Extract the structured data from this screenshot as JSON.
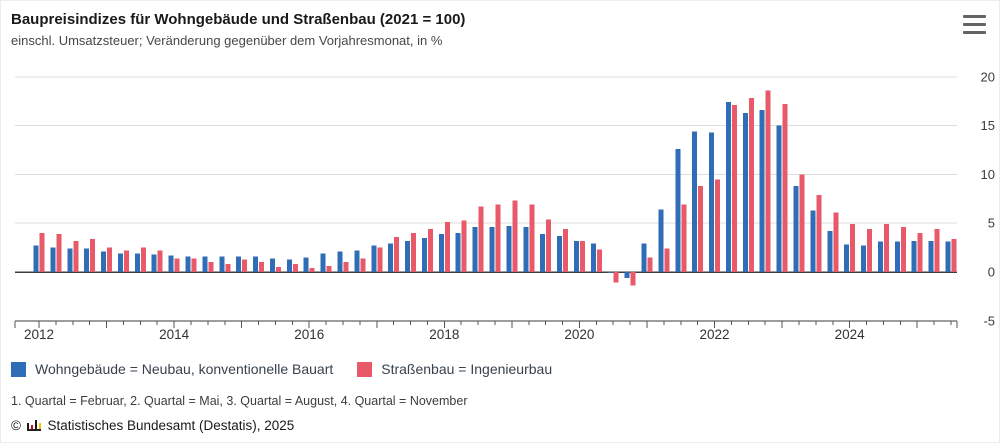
{
  "header": {
    "title": "Baupreisindizes für Wohngebäude und Straßenbau (2021 = 100)",
    "subtitle": "einschl. Umsatzsteuer; Veränderung gegenüber dem Vorjahresmonat, in %"
  },
  "menu": {
    "icon": "hamburger-menu"
  },
  "chart_data": {
    "type": "bar",
    "title": "Baupreisindizes für Wohngebäude und Straßenbau (2021 = 100)",
    "subtitle": "einschl. Umsatzsteuer; Veränderung gegenüber dem Vorjahresmonat, in %",
    "xlabel": "",
    "ylabel": "Veränderung gegenüber dem Vorjahresmonat, in %",
    "ylim": [
      -5,
      20.6
    ],
    "yticks": [
      20,
      15,
      10,
      5,
      0,
      -5
    ],
    "grid": true,
    "legend_position": "bottom",
    "categories": [
      "2012 Q1",
      "2012 Q2",
      "2012 Q3",
      "2012 Q4",
      "2013 Q1",
      "2013 Q2",
      "2013 Q3",
      "2013 Q4",
      "2014 Q1",
      "2014 Q2",
      "2014 Q3",
      "2014 Q4",
      "2015 Q1",
      "2015 Q2",
      "2015 Q3",
      "2015 Q4",
      "2016 Q1",
      "2016 Q2",
      "2016 Q3",
      "2016 Q4",
      "2017 Q1",
      "2017 Q2",
      "2017 Q3",
      "2017 Q4",
      "2018 Q1",
      "2018 Q2",
      "2018 Q3",
      "2018 Q4",
      "2019 Q1",
      "2019 Q2",
      "2019 Q3",
      "2019 Q4",
      "2020 Q1",
      "2020 Q2",
      "2020 Q3",
      "2020 Q4",
      "2021 Q1",
      "2021 Q2",
      "2021 Q3",
      "2021 Q4",
      "2022 Q1",
      "2022 Q2",
      "2022 Q3",
      "2022 Q4",
      "2023 Q1",
      "2023 Q2",
      "2023 Q3",
      "2023 Q4",
      "2024 Q1",
      "2024 Q2",
      "2024 Q3",
      "2024 Q4",
      "2025 Q1",
      "2025 Q2",
      "2025 Q3"
    ],
    "series": [
      {
        "name": "Wohngebäude = Neubau, konventionelle Bauart",
        "color": "#2f6eb6",
        "values": [
          2.7,
          2.5,
          2.4,
          2.4,
          2.1,
          1.9,
          1.9,
          1.8,
          1.7,
          1.6,
          1.6,
          1.6,
          1.6,
          1.6,
          1.4,
          1.3,
          1.5,
          1.9,
          2.1,
          2.2,
          2.7,
          2.9,
          3.2,
          3.5,
          3.9,
          4.0,
          4.6,
          4.6,
          4.7,
          4.6,
          3.9,
          3.7,
          3.2,
          2.9,
          -0.1,
          -0.6,
          2.9,
          6.4,
          12.6,
          14.4,
          14.3,
          17.4,
          16.3,
          16.6,
          15.0,
          8.8,
          6.3,
          4.2,
          2.8,
          2.7,
          3.1,
          3.1,
          3.2,
          3.2,
          3.1
        ]
      },
      {
        "name": "Straßenbau = Ingenieurbau",
        "color": "#e8596a",
        "values": [
          4.0,
          3.9,
          3.2,
          3.4,
          2.5,
          2.2,
          2.5,
          2.2,
          1.4,
          1.4,
          1.0,
          0.8,
          1.3,
          1.0,
          0.5,
          0.8,
          0.4,
          0.6,
          1.0,
          1.4,
          2.5,
          3.6,
          4.0,
          4.4,
          5.1,
          5.3,
          6.7,
          6.9,
          7.3,
          6.9,
          5.4,
          4.4,
          3.2,
          2.3,
          -1.1,
          -1.4,
          1.5,
          2.4,
          6.9,
          8.8,
          9.5,
          17.1,
          17.8,
          18.6,
          17.2,
          10.0,
          7.9,
          6.1,
          4.9,
          4.4,
          4.9,
          4.6,
          4.0,
          4.4,
          3.4
        ]
      }
    ],
    "year_ticks": [
      {
        "label": "2012",
        "index": 0
      },
      {
        "label": "2014",
        "index": 8
      },
      {
        "label": "2016",
        "index": 16
      },
      {
        "label": "2018",
        "index": 24
      },
      {
        "label": "2020",
        "index": 32
      },
      {
        "label": "2022",
        "index": 40
      },
      {
        "label": "2024",
        "index": 48
      }
    ]
  },
  "footnote": "1. Quartal = Februar, 2. Quartal = Mai, 3. Quartal = August, 4. Quartal = November",
  "copyright": {
    "prefix": "©",
    "text": "Statistisches Bundesamt (Destatis), 2025"
  }
}
